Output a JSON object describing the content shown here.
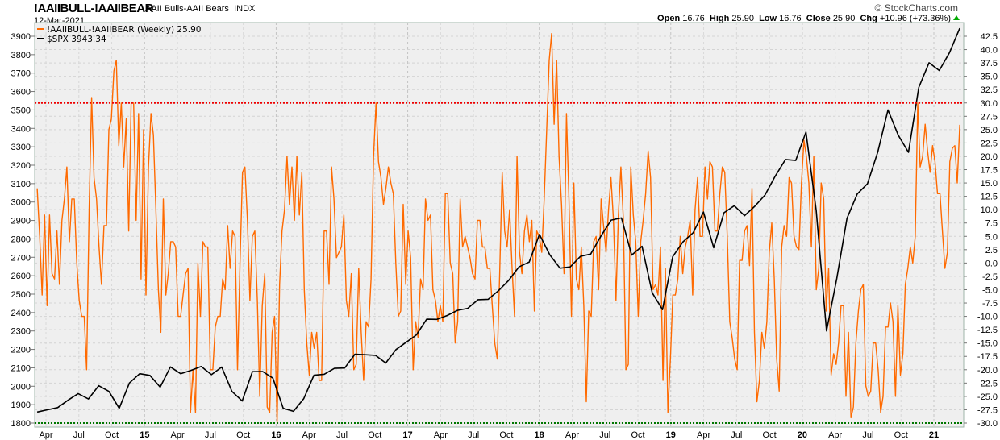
{
  "header": {
    "symbol": "!AAIIBULL-!AAIIBEAR",
    "name": "AAII Bulls-AAII Bears",
    "exchange": "INDX",
    "date": "12-Mar-2021",
    "credit": "© StockCharts.com",
    "open_label": "Open",
    "open": "16.76",
    "high_label": "High",
    "high": "25.90",
    "low_label": "Low",
    "low": "16.76",
    "close_label": "Close",
    "close": "25.90",
    "chg_label": "Chg",
    "chg": "+10.96 (+73.36%)"
  },
  "colors": {
    "spread": "#ff6a00",
    "spx": "#000000",
    "upper_line": "#ee0000",
    "lower_line": "#007700",
    "plot_bg": "#efefef"
  },
  "chart_data": {
    "type": "line",
    "title": "!AAIIBULL-!AAIIBEAR AAII Bulls-AAII Bears INDX",
    "start": "2014-03-07",
    "end": "2021-03-12",
    "legend_placement": "top-left",
    "grid": true,
    "series": [
      {
        "name": "!AAIIBULL-!AAIIBEAR (Weekly) 25.90",
        "axis": "right",
        "color": "#ff6a00",
        "values": [
          14,
          5,
          -6,
          9,
          -8,
          9,
          -2,
          -3,
          6,
          -4,
          8,
          12,
          18,
          4,
          12,
          12,
          0,
          -7,
          -10,
          -10,
          -20,
          10,
          31,
          16,
          12,
          3,
          -4,
          7,
          7,
          25,
          27,
          36,
          38,
          22,
          30,
          18,
          27,
          6,
          30,
          30,
          8,
          28,
          -3,
          25,
          -6,
          18,
          28,
          24,
          10,
          -5,
          -13,
          12,
          -6,
          -2,
          4,
          4,
          3,
          -10,
          -10,
          -6,
          -2,
          -1,
          -28,
          -20,
          -28,
          0,
          -10,
          4,
          3,
          3,
          -20,
          -20,
          -12,
          -10,
          -10,
          -3,
          -5,
          7,
          -1,
          6,
          5,
          -20,
          0,
          17,
          18,
          8,
          -7,
          5,
          6,
          -7,
          -25,
          -8,
          -2,
          -27,
          -28,
          -13,
          -10,
          -30,
          -4,
          6,
          10,
          20,
          11,
          18,
          8,
          20,
          9,
          17,
          -5,
          -15,
          -21,
          -13,
          -16,
          -13,
          -22,
          -22,
          6,
          6,
          -4,
          18,
          12,
          1,
          2,
          3,
          9,
          -7,
          -10,
          -2,
          -20,
          -19,
          -1,
          -13,
          -22,
          -11,
          -12,
          -3,
          20,
          30,
          19,
          16,
          11,
          14,
          18,
          15,
          13,
          0,
          -10,
          -9,
          11,
          -4,
          6,
          1,
          -20,
          -11,
          -14,
          -3,
          -5,
          12,
          8,
          9,
          -5,
          -7,
          -11,
          -8,
          -11,
          13,
          13,
          0,
          -2,
          -15,
          -11,
          12,
          3,
          5,
          3,
          1,
          -2,
          -3,
          8,
          8,
          3,
          3,
          -1,
          -1,
          -8,
          -15,
          -18,
          -2,
          17,
          6,
          3,
          10,
          -1,
          -10,
          20,
          2,
          -2,
          6,
          9,
          4,
          8,
          -9,
          6,
          5,
          2,
          12,
          25,
          38,
          43,
          26,
          38,
          20,
          11,
          -2,
          28,
          12,
          -10,
          15,
          -3,
          -5,
          3,
          -8,
          -26,
          -9,
          -10,
          4,
          5,
          -5,
          12,
          7,
          2,
          10,
          16,
          8,
          -7,
          9,
          18,
          8,
          -20,
          -19,
          18,
          9,
          4,
          -10,
          4,
          8,
          13,
          21,
          16,
          -5,
          -4,
          -6,
          3,
          -22,
          -1,
          -28,
          -18,
          -6,
          -6,
          -3,
          5,
          -2,
          3,
          5,
          8,
          -6,
          10,
          16,
          5,
          5,
          18,
          12,
          19,
          18,
          6,
          6,
          13,
          18,
          17,
          5,
          -11,
          -14,
          -18,
          -20,
          0.5,
          0.5,
          6,
          7,
          -0.5,
          14,
          -13,
          -26,
          -22,
          -13,
          -16,
          -11,
          2,
          7.5,
          -3,
          -18,
          -24,
          3,
          7,
          5,
          16,
          15,
          5,
          3,
          2.5,
          15,
          23,
          20,
          15,
          3,
          20,
          -5,
          -1,
          15,
          12,
          -9,
          -1,
          -21,
          -17,
          -19,
          -15,
          -8,
          -8,
          -25,
          -13,
          -29,
          -27,
          -15,
          -9,
          -5,
          -4,
          -23,
          -25,
          -24,
          -15,
          -15,
          -20,
          -28,
          -25,
          -12,
          -12,
          -7.5,
          -11,
          -25,
          -8,
          -21,
          -17,
          -4,
          -1,
          3,
          0,
          5,
          30,
          18,
          20,
          26,
          21,
          17,
          22,
          19,
          13,
          13,
          6,
          -1,
          2,
          19,
          21.5,
          22,
          15,
          25.9
        ]
      },
      {
        "name": "$SPX 3943.34",
        "axis": "left",
        "color": "#000000",
        "values": [
          1860,
          1872,
          1884,
          1924,
          1960,
          1931,
          2003,
          1972,
          1880,
          2018,
          2068,
          2059,
          1995,
          2105,
          2068,
          2086,
          2107,
          2063,
          2104,
          1972,
          1920,
          2079,
          2080,
          2044,
          1880,
          1864,
          1932,
          2060,
          2065,
          2097,
          2099,
          2174,
          2171,
          2168,
          2126,
          2199,
          2239,
          2279,
          2364,
          2363,
          2384,
          2412,
          2423,
          2470,
          2472,
          2519,
          2575,
          2648,
          2674,
          2824,
          2714,
          2641,
          2648,
          2705,
          2718,
          2816,
          2902,
          2914,
          2712,
          2760,
          2507,
          2416,
          2704,
          2784,
          2834,
          2946,
          2752,
          2942,
          2980,
          2926,
          2977,
          3038,
          3141,
          3231,
          3226,
          3380,
          2954,
          2300,
          2585,
          2912,
          3044,
          3100,
          3271,
          3500,
          3363,
          3270,
          3622,
          3756,
          3714,
          3811,
          3943.34
        ]
      }
    ],
    "left_axis": {
      "min": 1800,
      "max": 3900,
      "step": 100,
      "ticks": [
        "1800",
        "1900",
        "2000",
        "2100",
        "2200",
        "2300",
        "2400",
        "2500",
        "2600",
        "2700",
        "2800",
        "2900",
        "3000",
        "3100",
        "3200",
        "3300",
        "3400",
        "3500",
        "3600",
        "3700",
        "3800",
        "3900"
      ]
    },
    "right_axis": {
      "min": -30,
      "max": 42.5,
      "step": 2.5,
      "ticks": [
        "-30.0",
        "-27.5",
        "-25.0",
        "-22.5",
        "-20.0",
        "-17.5",
        "-15.0",
        "-12.5",
        "-10.0",
        "-7.5",
        "-5.0",
        "-2.5",
        "0.0",
        "2.5",
        "5.0",
        "7.5",
        "10.0",
        "12.5",
        "15.0",
        "17.5",
        "20.0",
        "22.5",
        "25.0",
        "27.5",
        "30.0",
        "32.5",
        "35.0",
        "37.5",
        "40.0",
        "42.5"
      ]
    },
    "reference_lines": [
      {
        "axis": "right",
        "value": 30,
        "color": "#ee0000"
      },
      {
        "axis": "right",
        "value": -30,
        "color": "#007700"
      }
    ],
    "x_ticks": [
      {
        "label": "Apr",
        "date": "2014-04",
        "year": false
      },
      {
        "label": "Jul",
        "date": "2014-07",
        "year": false
      },
      {
        "label": "Oct",
        "date": "2014-10",
        "year": false
      },
      {
        "label": "15",
        "date": "2015-01",
        "year": true
      },
      {
        "label": "Apr",
        "date": "2015-04",
        "year": false
      },
      {
        "label": "Jul",
        "date": "2015-07",
        "year": false
      },
      {
        "label": "Oct",
        "date": "2015-10",
        "year": false
      },
      {
        "label": "16",
        "date": "2016-01",
        "year": true
      },
      {
        "label": "Apr",
        "date": "2016-04",
        "year": false
      },
      {
        "label": "Jul",
        "date": "2016-07",
        "year": false
      },
      {
        "label": "Oct",
        "date": "2016-10",
        "year": false
      },
      {
        "label": "17",
        "date": "2017-01",
        "year": true
      },
      {
        "label": "Apr",
        "date": "2017-04",
        "year": false
      },
      {
        "label": "Jul",
        "date": "2017-07",
        "year": false
      },
      {
        "label": "Oct",
        "date": "2017-10",
        "year": false
      },
      {
        "label": "18",
        "date": "2018-01",
        "year": true
      },
      {
        "label": "Apr",
        "date": "2018-04",
        "year": false
      },
      {
        "label": "Jul",
        "date": "2018-07",
        "year": false
      },
      {
        "label": "Oct",
        "date": "2018-10",
        "year": false
      },
      {
        "label": "19",
        "date": "2019-01",
        "year": true
      },
      {
        "label": "Apr",
        "date": "2019-04",
        "year": false
      },
      {
        "label": "Jul",
        "date": "2019-07",
        "year": false
      },
      {
        "label": "Oct",
        "date": "2019-10",
        "year": false
      },
      {
        "label": "20",
        "date": "2020-01",
        "year": true
      },
      {
        "label": "Apr",
        "date": "2020-04",
        "year": false
      },
      {
        "label": "Jul",
        "date": "2020-07",
        "year": false
      },
      {
        "label": "Oct",
        "date": "2020-10",
        "year": false
      },
      {
        "label": "21",
        "date": "2021-01",
        "year": true
      }
    ]
  }
}
